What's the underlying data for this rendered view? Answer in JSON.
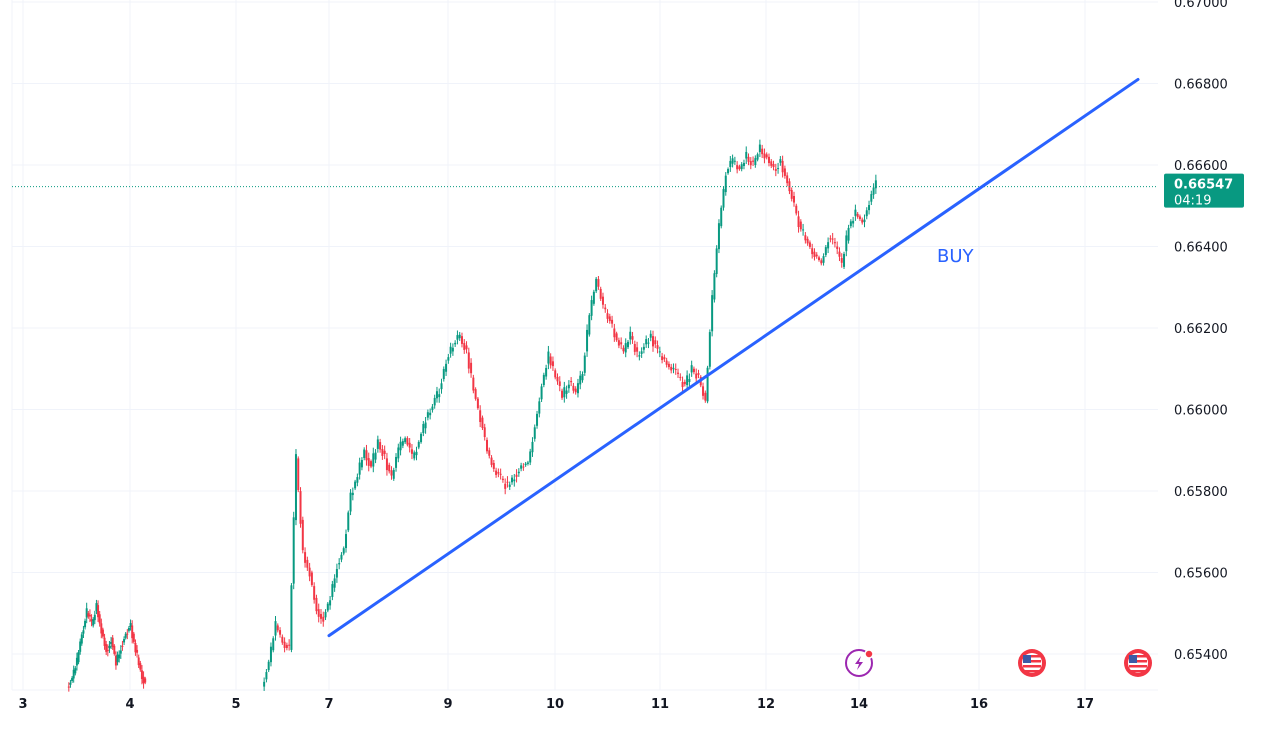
{
  "colors": {
    "up": "#089981",
    "down": "#f23645",
    "trendline": "#2962ff",
    "current_price_bg": "#089981",
    "grid": "#f0f3fa",
    "event_lightning": "#9c27b0",
    "event_flag": "#f23645"
  },
  "current_price": {
    "value": "0.66547",
    "countdown": "04:19"
  },
  "annotation": {
    "label": "BUY"
  },
  "events": [
    {
      "icon": "lightning-event-icon",
      "day": "14"
    },
    {
      "icon": "us-flag-event-icon",
      "day": "16.5"
    },
    {
      "icon": "us-flag-event-icon",
      "day": "17.5"
    }
  ],
  "chart_data": {
    "type": "candlestick",
    "title": "",
    "xlabel": "",
    "ylabel": "",
    "x_ticks": [
      "3",
      "4",
      "5",
      "7",
      "9",
      "10",
      "11",
      "12",
      "14",
      "16",
      "17"
    ],
    "y_ticks": [
      "0.65400",
      "0.65600",
      "0.65800",
      "0.66000",
      "0.66200",
      "0.66400",
      "0.66600",
      "0.66800",
      "0.67000"
    ],
    "ylim": [
      0.6532,
      0.6702
    ],
    "last_price": 0.66547,
    "trendline": {
      "label": "BUY",
      "start": [
        "7",
        0.65445
      ],
      "end": [
        "17.5",
        0.6681
      ]
    },
    "series": [
      {
        "segment": "3-4",
        "points": [
          0.6532,
          0.6534,
          0.6538,
          0.6545,
          0.655,
          0.6547,
          0.6552,
          0.6546,
          0.6541,
          0.6544,
          0.6538,
          0.6542,
          0.6545,
          0.6547,
          0.6541,
          0.6536,
          0.6533
        ]
      },
      {
        "segment": "5-14",
        "points": [
          0.6532,
          0.6538,
          0.6547,
          0.6543,
          0.6541,
          0.6588,
          0.6565,
          0.656,
          0.6551,
          0.6549,
          0.6554,
          0.6562,
          0.6566,
          0.6579,
          0.6584,
          0.659,
          0.6586,
          0.6592,
          0.6588,
          0.6583,
          0.659,
          0.6593,
          0.6588,
          0.6592,
          0.6598,
          0.6601,
          0.6605,
          0.6612,
          0.6616,
          0.6618,
          0.6614,
          0.6605,
          0.6598,
          0.659,
          0.6585,
          0.6583,
          0.6581,
          0.6584,
          0.6586,
          0.6587,
          0.6596,
          0.6606,
          0.6613,
          0.6608,
          0.6603,
          0.6607,
          0.6604,
          0.6609,
          0.6623,
          0.6632,
          0.6625,
          0.6622,
          0.6617,
          0.6614,
          0.6618,
          0.6613,
          0.6616,
          0.6618,
          0.6614,
          0.6612,
          0.661,
          0.6608,
          0.6606,
          0.661,
          0.6608,
          0.6602,
          0.6627,
          0.6645,
          0.6658,
          0.6661,
          0.6659,
          0.6662,
          0.666,
          0.6664,
          0.6662,
          0.6659,
          0.6661,
          0.6656,
          0.665,
          0.6644,
          0.6641,
          0.6638,
          0.6636,
          0.6642,
          0.664,
          0.6635,
          0.6645,
          0.6648,
          0.6646,
          0.6651,
          0.6655
        ]
      }
    ]
  }
}
